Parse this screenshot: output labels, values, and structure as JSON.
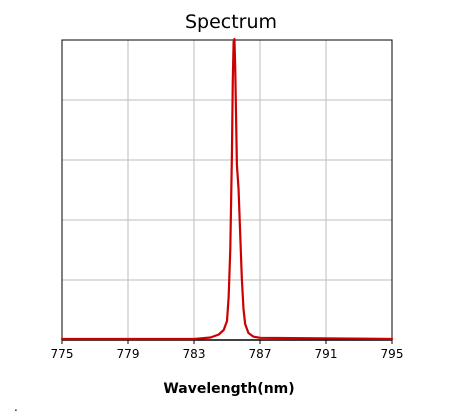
{
  "chart_data": {
    "type": "line",
    "title": "Spectrum",
    "xlabel": "Wavelength(nm)",
    "ylabel": "",
    "xlim": [
      775,
      795
    ],
    "ylim": [
      0,
      1
    ],
    "x_ticks": [
      775,
      779,
      783,
      787,
      791,
      795
    ],
    "x_tick_labels": [
      "775",
      "779",
      "783",
      "787",
      "791",
      "795"
    ],
    "y_gridlines": 5,
    "grid": true,
    "legend": "none",
    "series": [
      {
        "color": "#cc0000",
        "x": [
          775,
          779,
          783,
          784,
          784.5,
          784.8,
          785.0,
          785.1,
          785.2,
          785.3,
          785.35,
          785.4,
          785.45,
          785.5,
          785.55,
          785.6,
          785.7,
          785.8,
          785.9,
          786.0,
          786.1,
          786.3,
          786.6,
          787,
          791,
          795
        ],
        "y": [
          0.0,
          0.0,
          0.0,
          0.005,
          0.015,
          0.03,
          0.06,
          0.14,
          0.3,
          0.62,
          0.86,
          0.99,
          1.0,
          0.9,
          0.74,
          0.58,
          0.5,
          0.35,
          0.2,
          0.1,
          0.05,
          0.02,
          0.008,
          0.004,
          0.002,
          0.0
        ]
      }
    ]
  },
  "stray_mark": "."
}
